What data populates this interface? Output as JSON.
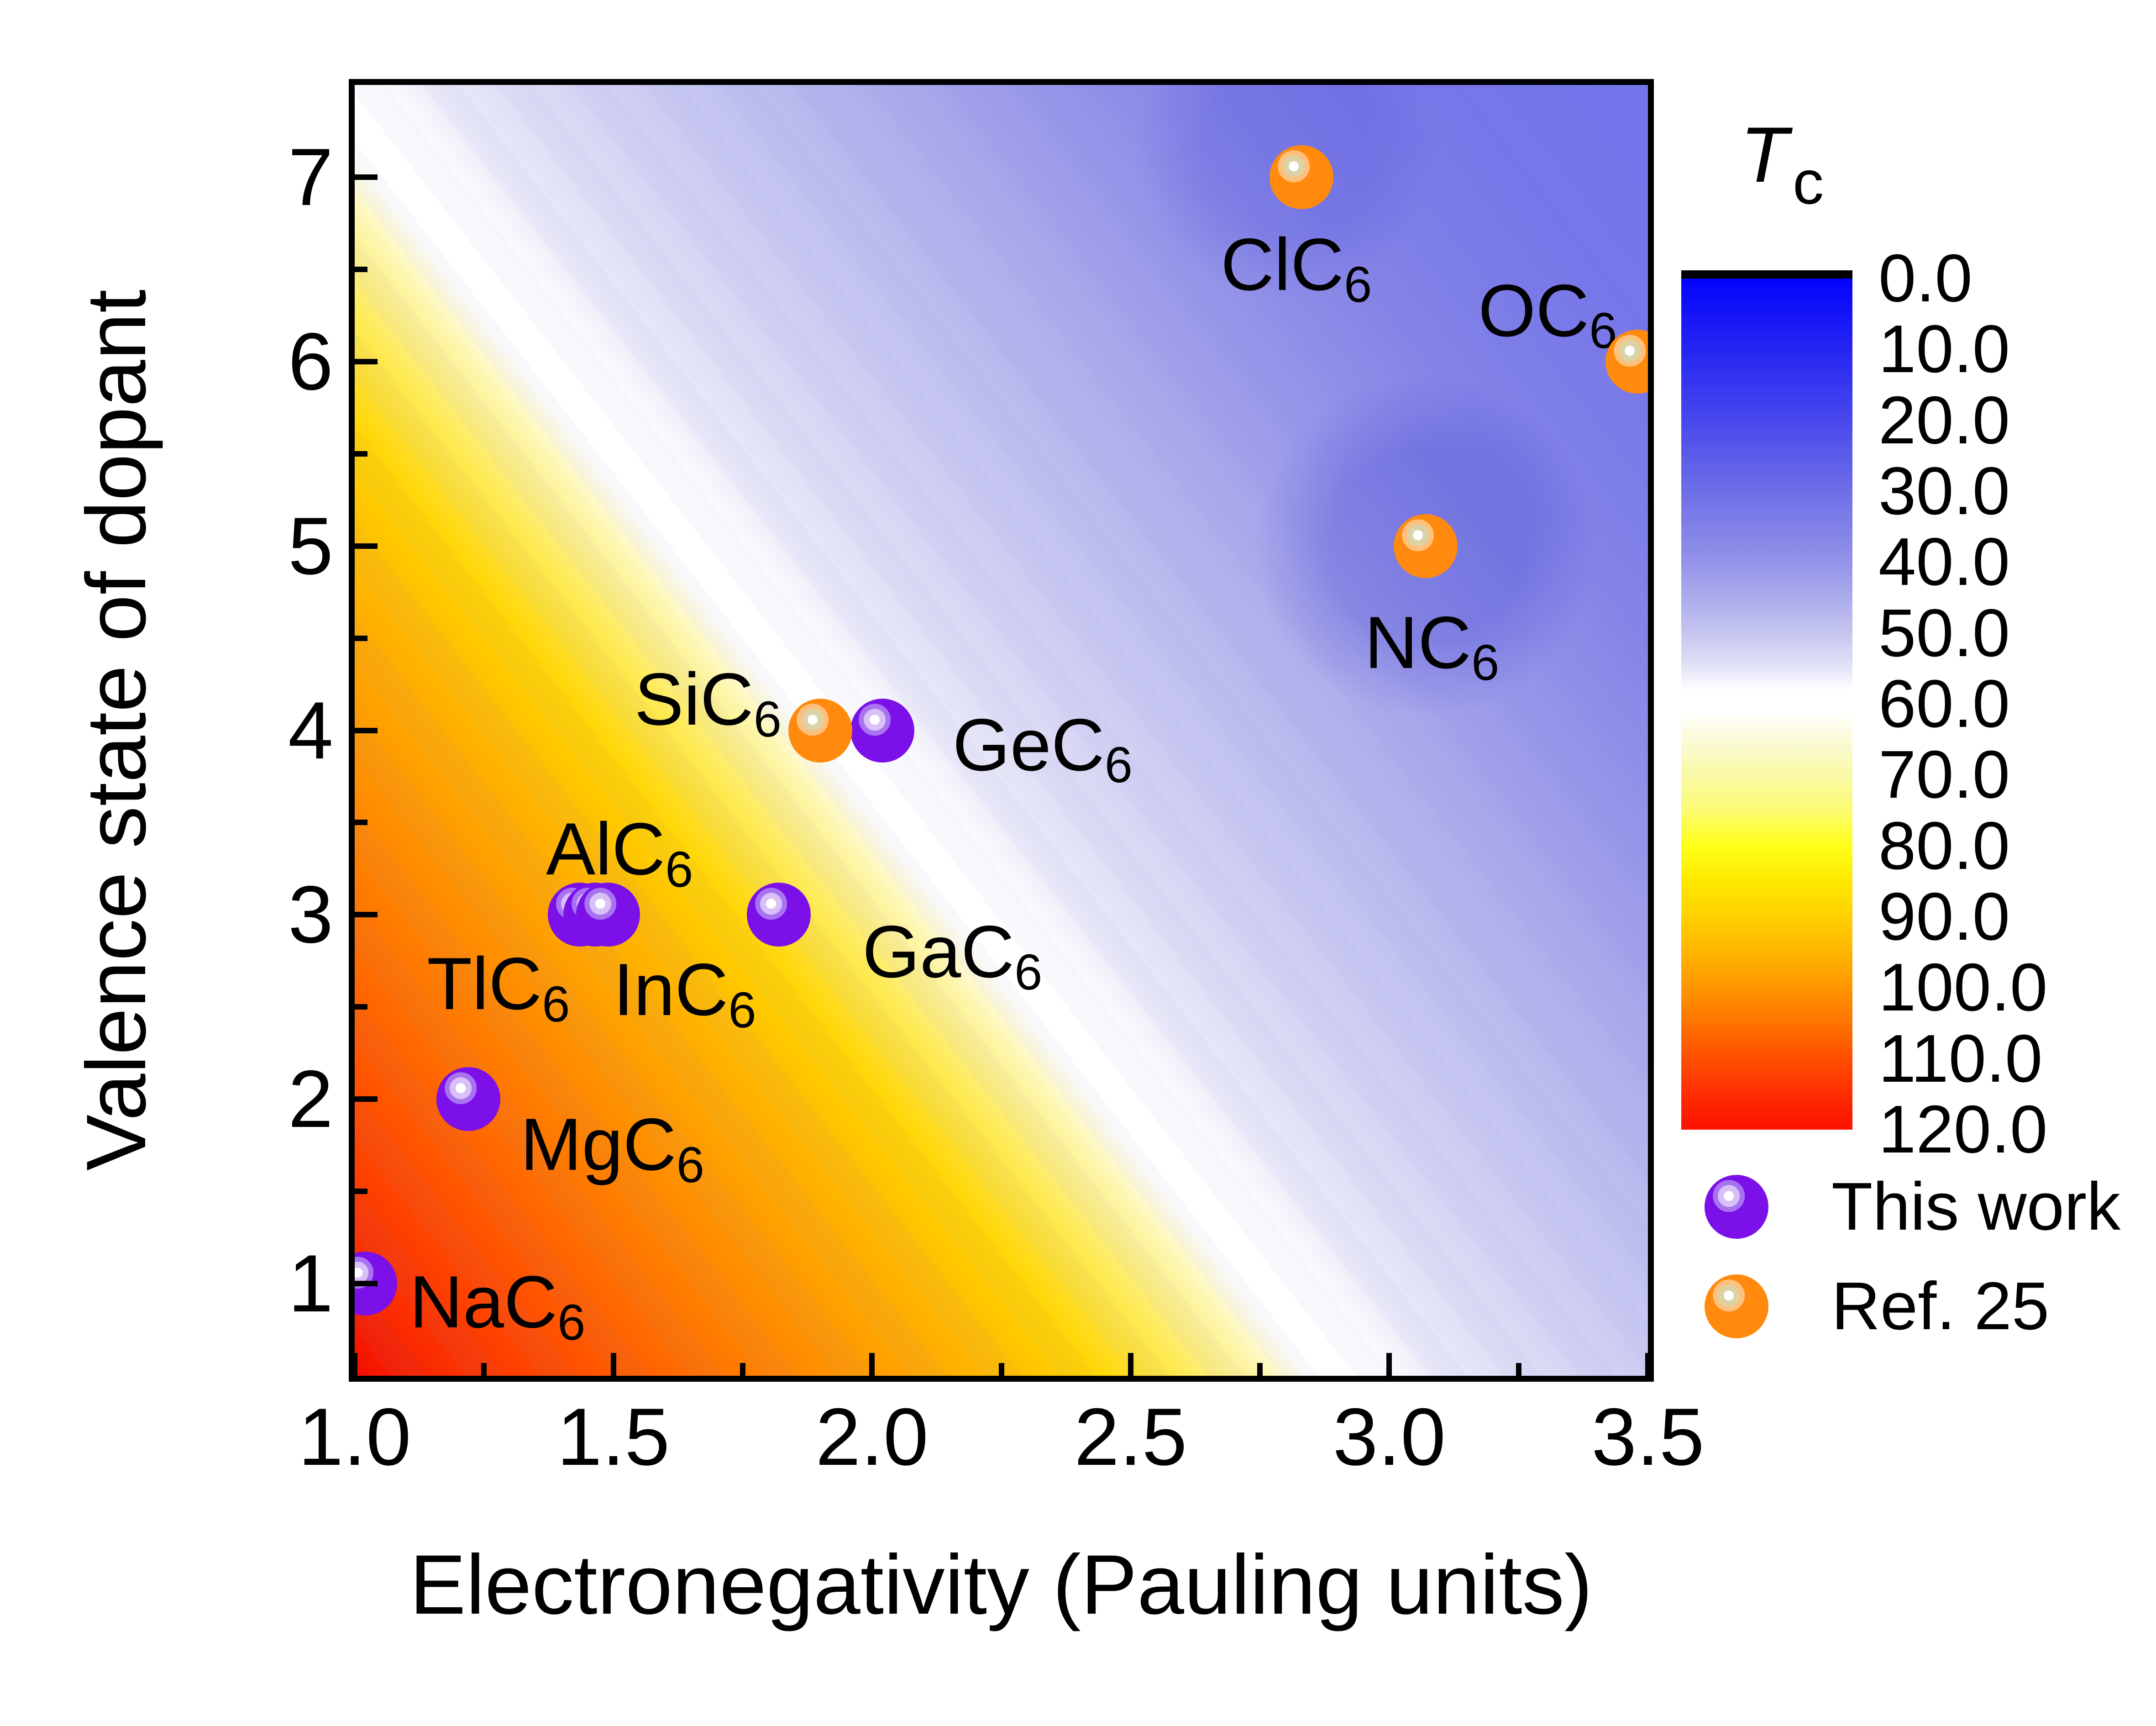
{
  "chart_data": {
    "type": "contour-scatter",
    "xlabel": "Electronegativity (Pauling units)",
    "ylabel": "Valence state of dopant",
    "xlim": [
      1.0,
      3.5
    ],
    "ylim": [
      0.5,
      7.5
    ],
    "grid": false,
    "x_axis": {
      "major_ticks": [
        1.0,
        1.5,
        2.0,
        2.5,
        3.0,
        3.5
      ],
      "major_labels": [
        "1.0",
        "1.5",
        "2.0",
        "2.5",
        "3.0",
        "3.5"
      ],
      "minor_ticks": [
        1.25,
        1.75,
        2.25,
        2.75,
        3.25
      ]
    },
    "y_axis": {
      "major_ticks": [
        1,
        2,
        3,
        4,
        5,
        6,
        7
      ],
      "major_labels": [
        "1",
        "2",
        "3",
        "4",
        "5",
        "6",
        "7"
      ],
      "minor_ticks": [
        1.5,
        2.5,
        3.5,
        4.5,
        5.5,
        6.5
      ]
    },
    "colorbar": {
      "title_main": "T",
      "title_sub": "c",
      "range": [
        0.0,
        120.0
      ],
      "tick_labels": [
        "0.0",
        "10.0",
        "20.0",
        "30.0",
        "40.0",
        "50.0",
        "60.0",
        "70.0",
        "80.0",
        "90.0",
        "100.0",
        "110.0",
        "120.0"
      ],
      "orientation": "vertical",
      "colormap_stops": [
        {
          "v": 0,
          "c": "#0303fe"
        },
        {
          "v": 10,
          "c": "#2525f3"
        },
        {
          "v": 20,
          "c": "#4848ec"
        },
        {
          "v": 30,
          "c": "#6e6ee7"
        },
        {
          "v": 40,
          "c": "#9393e9"
        },
        {
          "v": 50,
          "c": "#c5c5f0"
        },
        {
          "v": 55,
          "c": "#e4e4f8"
        },
        {
          "v": 58,
          "c": "#ffffff"
        },
        {
          "v": 61,
          "c": "#ffffff"
        },
        {
          "v": 65,
          "c": "#fbfbd8"
        },
        {
          "v": 70,
          "c": "#f9f9a8"
        },
        {
          "v": 75,
          "c": "#fbfb72"
        },
        {
          "v": 80,
          "c": "#ffff18"
        },
        {
          "v": 85,
          "c": "#ffe800"
        },
        {
          "v": 90,
          "c": "#ffd000"
        },
        {
          "v": 95,
          "c": "#ffb400"
        },
        {
          "v": 100,
          "c": "#ff9600"
        },
        {
          "v": 105,
          "c": "#ff7300"
        },
        {
          "v": 110,
          "c": "#ff4f00"
        },
        {
          "v": 115,
          "c": "#fe2d00"
        },
        {
          "v": 120,
          "c": "#fc1200"
        }
      ]
    },
    "surface": {
      "description": "interpolated Tc contour map, high Tc (red ~120) at low electronegativity / low valence, low Tc (blue ~0-20) at high electronegativity / high valence, white band ~Tc 55-60 crossing near SiC6/GeC6",
      "gradient_angle_deg": 52,
      "stops": [
        {
          "p": 0,
          "c": "#f30e00"
        },
        {
          "p": 4,
          "c": "#fa2d00"
        },
        {
          "p": 9,
          "c": "#ff4b00"
        },
        {
          "p": 15,
          "c": "#ff7000"
        },
        {
          "p": 21,
          "c": "#ff9300"
        },
        {
          "p": 27,
          "c": "#ffb400"
        },
        {
          "p": 32,
          "c": "#ffd400"
        },
        {
          "p": 36,
          "c": "#feea55"
        },
        {
          "p": 39.5,
          "c": "#fdf6b0"
        },
        {
          "p": 41.5,
          "c": "#ffffff"
        },
        {
          "p": 44.5,
          "c": "#ffffff"
        },
        {
          "p": 47.5,
          "c": "#e9e9f8"
        },
        {
          "p": 53,
          "c": "#d6d6f4"
        },
        {
          "p": 59,
          "c": "#c3c3f0"
        },
        {
          "p": 66,
          "c": "#aeaeec"
        },
        {
          "p": 74,
          "c": "#9595e9"
        },
        {
          "p": 82,
          "c": "#8282e7"
        },
        {
          "p": 90,
          "c": "#7777e9"
        },
        {
          "p": 100,
          "c": "#7474ee"
        }
      ],
      "minima": [
        {
          "x": 3.07,
          "y": 5.0,
          "radius_px": 520,
          "color": "rgba(32,32,200,0.22)"
        },
        {
          "x": 2.8,
          "y": 7.15,
          "radius_px": 460,
          "color": "rgba(40,40,205,0.14)"
        }
      ]
    },
    "series": [
      {
        "name": "This work",
        "marker": "purple",
        "marker_color": "#7b10e8",
        "points": [
          {
            "formula": "NaC",
            "sub": "6",
            "x": 1.02,
            "y": 1.0,
            "label_dx": 290,
            "label_dy": 41
          },
          {
            "formula": "MgC",
            "sub": "6",
            "x": 1.22,
            "y": 2.0,
            "label_dx": 315,
            "label_dy": 100
          },
          {
            "formula": "TlC",
            "sub": "6",
            "x": 1.435,
            "y": 3.0,
            "label_dx": -178,
            "label_dy": 152
          },
          {
            "formula": "InC",
            "sub": "6",
            "x": 1.465,
            "y": 3.0,
            "label_dx": 196,
            "label_dy": 165
          },
          {
            "formula": "AlC",
            "sub": "6",
            "x": 1.49,
            "y": 3.0,
            "label_dx": 25,
            "label_dy": -143
          },
          {
            "formula": "GaC",
            "sub": "6",
            "x": 1.82,
            "y": 3.0,
            "label_dx": 380,
            "label_dy": 82
          },
          {
            "formula": "GeC",
            "sub": "6",
            "x": 2.02,
            "y": 4.0,
            "label_dx": 351,
            "label_dy": 32
          }
        ]
      },
      {
        "name": "Ref. 25",
        "marker": "orange",
        "marker_color": "#ff8a0d",
        "points": [
          {
            "formula": "SiC",
            "sub": "6",
            "x": 1.9,
            "y": 4.0,
            "label_dx": -246,
            "label_dy": -68
          },
          {
            "formula": "ClC",
            "sub": "6",
            "x": 2.83,
            "y": 7.0,
            "label_dx": -11,
            "label_dy": 192
          },
          {
            "formula": "NC",
            "sub": "6",
            "x": 3.07,
            "y": 5.0,
            "label_dx": 14,
            "label_dy": 212
          },
          {
            "formula": "OC",
            "sub": "6",
            "x": 3.48,
            "y": 6.0,
            "label_dx": -197,
            "label_dy": -111
          }
        ]
      }
    ],
    "colors": {
      "background": "#ffffff",
      "axis": "#000000",
      "text": "#000000"
    }
  }
}
